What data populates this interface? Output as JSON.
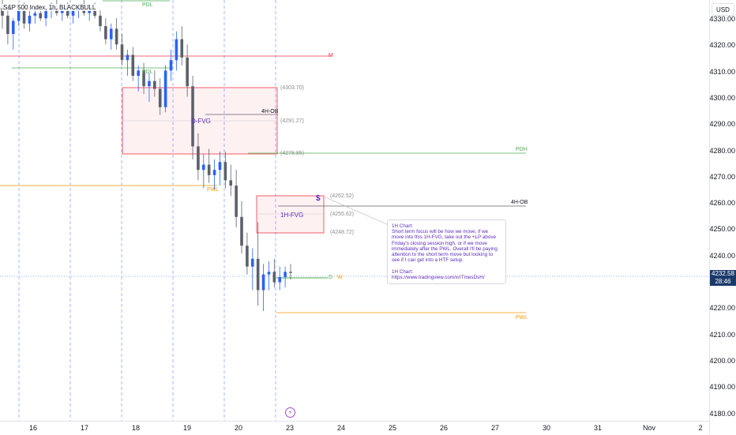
{
  "header": {
    "symbol_title": "S&P 500 Index, 1h, BLACKBULL"
  },
  "price_axis": {
    "currency": "USD",
    "ticks": [
      "4330.00",
      "4320.00",
      "4310.00",
      "4300.00",
      "4290.00",
      "4280.00",
      "4270.00",
      "4260.00",
      "4250.00",
      "4240.00",
      "4230.00",
      "4220.00",
      "4210.00",
      "4200.00",
      "4190.00",
      "4180.00"
    ],
    "last_price": "4232.58",
    "countdown": "28:46"
  },
  "time_axis": {
    "ticks": [
      "16",
      "17",
      "18",
      "19",
      "20",
      "23",
      "24",
      "25",
      "26",
      "27",
      "30",
      "31",
      "Nov",
      "2"
    ]
  },
  "levels": {
    "pdl_top": "PDL",
    "pdl": "PDL",
    "m": "M",
    "pdh": "PDH",
    "pwl_left": "PWL",
    "pwl_right": "PWL",
    "ob_4h_top": "4H-OB",
    "ob_4h_right": "4H-OB",
    "d_marker": "D",
    "w_marker": "W"
  },
  "zones": {
    "d_fvg": {
      "label": "D-FVG",
      "top": "(4303.70)",
      "mid": "(4291.27)",
      "bottom": "(4278.85)"
    },
    "h1_fvg": {
      "label": "1H-FVG",
      "top": "(4262.52)",
      "mid": "(4255.62)",
      "bottom": "(4248.72)"
    }
  },
  "note": {
    "text": "1H Chart:\nShort term focus will be how we move, if we move into this 1H-FVG, take out the +LP above Friday's closing session high, or if we move immediately after the PWL.  Overall I'll be paying attention to the short term move but looking to see if I can get into a HTF setup.\n\n1H Chart: https://www.tradingview.com/x/rTmesDsH/"
  },
  "icons": {
    "flash": "lightning-icon",
    "dollar": "dollar-sign-icon"
  },
  "colors": {
    "up": "#2962ff",
    "down": "#5d606b",
    "pdl": "#4caf50",
    "m": "#f23645",
    "pdh": "#4caf50",
    "pwl": "#ff9800",
    "zone_fill": "rgba(242,54,69,0.08)",
    "zone_border": "#f23645",
    "session_line": "#2962ff",
    "note_text": "#5b2bbd"
  },
  "chart_data": {
    "type": "candlestick",
    "y_range": [
      4176,
      4337
    ],
    "last_price": 4232.58,
    "horizontal_levels": [
      {
        "name": "M",
        "price": 4320.2
      },
      {
        "name": "PDL",
        "price": 4310.2
      },
      {
        "name": "PDH",
        "price": 4278.6
      },
      {
        "name": "PWL",
        "price": 4268.1
      },
      {
        "name": "4H-OB",
        "price": 4259.1
      },
      {
        "name": "PWL",
        "price": 4219.0
      },
      {
        "name": "D",
        "price": 4232.3
      }
    ],
    "zones": [
      {
        "name": "D-FVG",
        "top": 4303.7,
        "mid": 4291.27,
        "bottom": 4278.85
      },
      {
        "name": "1H-FVG",
        "top": 4262.52,
        "mid": 4255.62,
        "bottom": 4248.72
      }
    ],
    "candles": [
      [
        4334,
        4337,
        4326,
        4331
      ],
      [
        4331,
        4334,
        4320,
        4324
      ],
      [
        4324,
        4330,
        4318,
        4329
      ],
      [
        4329,
        4335,
        4327,
        4333
      ],
      [
        4333,
        4336,
        4326,
        4328
      ],
      [
        4328,
        4333,
        4325,
        4331
      ],
      [
        4331,
        4334,
        4328,
        4332
      ],
      [
        4332,
        4335,
        4329,
        4330
      ],
      [
        4330,
        4334,
        4327,
        4333
      ],
      [
        4333,
        4336,
        4330,
        4334
      ],
      [
        4334,
        4337,
        4331,
        4332
      ],
      [
        4332,
        4335,
        4329,
        4333
      ],
      [
        4333,
        4336,
        4330,
        4331
      ],
      [
        4331,
        4334,
        4328,
        4333
      ],
      [
        4333,
        4335,
        4330,
        4334
      ],
      [
        4334,
        4337,
        4331,
        4332
      ],
      [
        4332,
        4335,
        4329,
        4333
      ],
      [
        4333,
        4336,
        4330,
        4331
      ],
      [
        4331,
        4333,
        4325,
        4327
      ],
      [
        4327,
        4330,
        4320,
        4322
      ],
      [
        4322,
        4328,
        4318,
        4326
      ],
      [
        4326,
        4330,
        4318,
        4320
      ],
      [
        4320,
        4324,
        4312,
        4314
      ],
      [
        4314,
        4318,
        4308,
        4316
      ],
      [
        4316,
        4319,
        4306,
        4308
      ],
      [
        4308,
        4312,
        4302,
        4310
      ],
      [
        4310,
        4313,
        4301,
        4304
      ],
      [
        4304,
        4309,
        4298,
        4306
      ],
      [
        4306,
        4310,
        4300,
        4303
      ],
      [
        4303,
        4307,
        4293,
        4296
      ],
      [
        4296,
        4312,
        4294,
        4310
      ],
      [
        4310,
        4318,
        4306,
        4314
      ],
      [
        4314,
        4325,
        4310,
        4322
      ],
      [
        4322,
        4327,
        4312,
        4315
      ],
      [
        4315,
        4320,
        4300,
        4304
      ],
      [
        4304,
        4308,
        4276,
        4281
      ],
      [
        4281,
        4286,
        4268,
        4272
      ],
      [
        4272,
        4278,
        4265,
        4274
      ],
      [
        4274,
        4280,
        4267,
        4270
      ],
      [
        4270,
        4276,
        4264,
        4272
      ],
      [
        4272,
        4279,
        4266,
        4275
      ],
      [
        4275,
        4279,
        4265,
        4268
      ],
      [
        4268,
        4274,
        4262,
        4266
      ],
      [
        4266,
        4272,
        4250,
        4254
      ],
      [
        4254,
        4260,
        4240,
        4243
      ],
      [
        4243,
        4248,
        4232,
        4235
      ],
      [
        4235,
        4242,
        4226,
        4238
      ],
      [
        4238,
        4252,
        4220,
        4226
      ],
      [
        4226,
        4236,
        4218,
        4232
      ],
      [
        4232,
        4237,
        4226,
        4233
      ],
      [
        4233,
        4238,
        4227,
        4229
      ],
      [
        4229,
        4235,
        4226,
        4231
      ],
      [
        4231,
        4235,
        4227,
        4233
      ],
      [
        4233,
        4236,
        4230,
        4232.58
      ]
    ]
  }
}
